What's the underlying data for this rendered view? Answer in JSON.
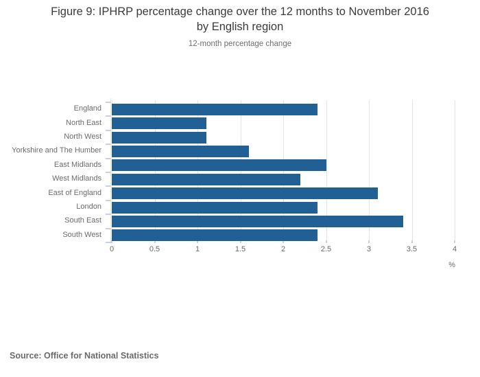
{
  "header": {
    "title": "Figure 9: IPHRP percentage change over the 12 months to November 2016\nby English region",
    "subtitle": "12-month percentage change"
  },
  "chart_data": {
    "type": "bar",
    "orientation": "horizontal",
    "title": "Figure 9: IPHRP percentage change over the 12 months to November 2016 by English region",
    "subtitle": "12-month percentage change",
    "categories": [
      "England",
      "North East",
      "North West",
      "Yorkshire and The Humber",
      "East Midlands",
      "West Midlands",
      "East of England",
      "London",
      "South East",
      "South West"
    ],
    "values": [
      2.4,
      1.1,
      1.1,
      1.6,
      2.5,
      2.2,
      3.1,
      2.4,
      3.4,
      2.4
    ],
    "xlabel": "%",
    "ylabel": "",
    "xlim": [
      0,
      4
    ],
    "x_ticks": [
      0,
      0.5,
      1,
      1.5,
      2,
      2.5,
      3,
      3.5,
      4
    ],
    "x_tick_labels": [
      "0",
      "0.5",
      "1",
      "1.5",
      "2",
      "2.5",
      "3",
      "3.5",
      "4"
    ],
    "grid": true,
    "legend": false,
    "colors": {
      "bar": "#206095",
      "gridline": "#e4e4e4",
      "axis_tick": "#c6d3e6",
      "axis_line": "#dde5f0"
    }
  },
  "footer": {
    "source": "Source: Office for National Statistics"
  }
}
